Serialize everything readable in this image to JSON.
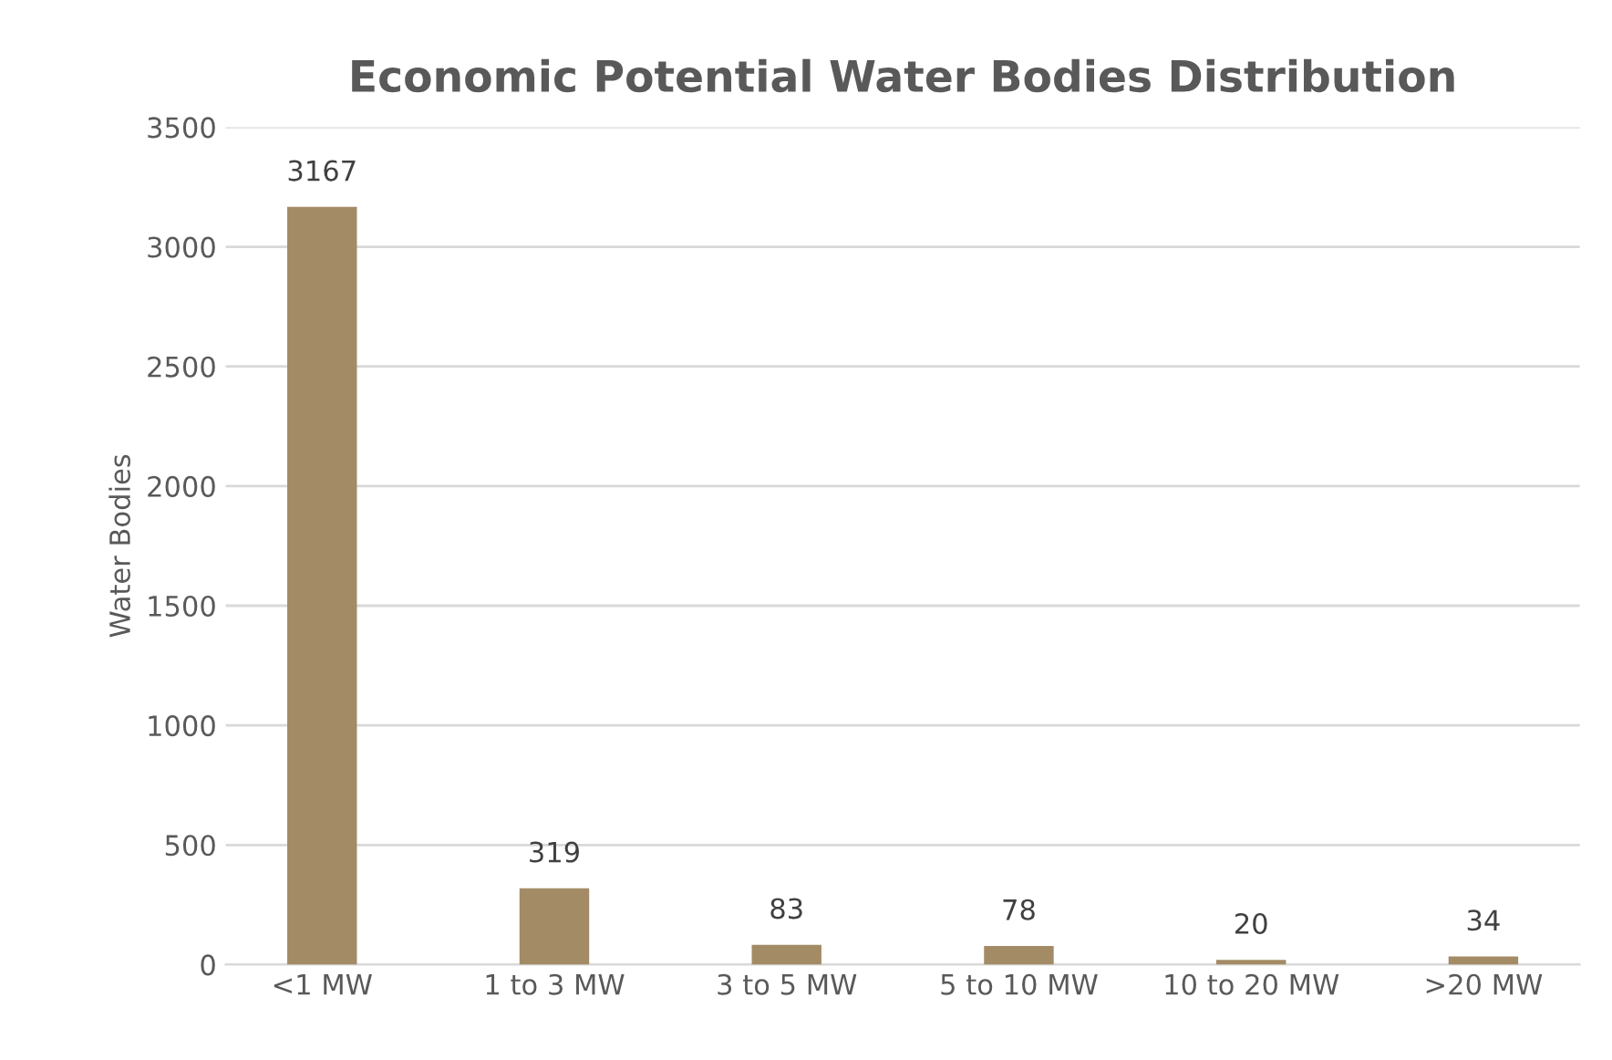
{
  "chart_data": {
    "type": "bar",
    "title": "Economic Potential Water Bodies Distribution",
    "ylabel": "Water Bodies",
    "categories": [
      "<1 MW",
      "1 to 3 MW",
      "3 to 5 MW",
      "5 to 10 MW",
      "10 to 20 MW",
      ">20 MW"
    ],
    "values": [
      3167,
      319,
      83,
      78,
      20,
      34
    ],
    "color": "#a38b66",
    "ylim": [
      0,
      3500
    ],
    "yticks": [
      0,
      500,
      1000,
      1500,
      2000,
      2500,
      3000,
      3500
    ],
    "grid": "y",
    "data_labels": true,
    "legend": false
  }
}
